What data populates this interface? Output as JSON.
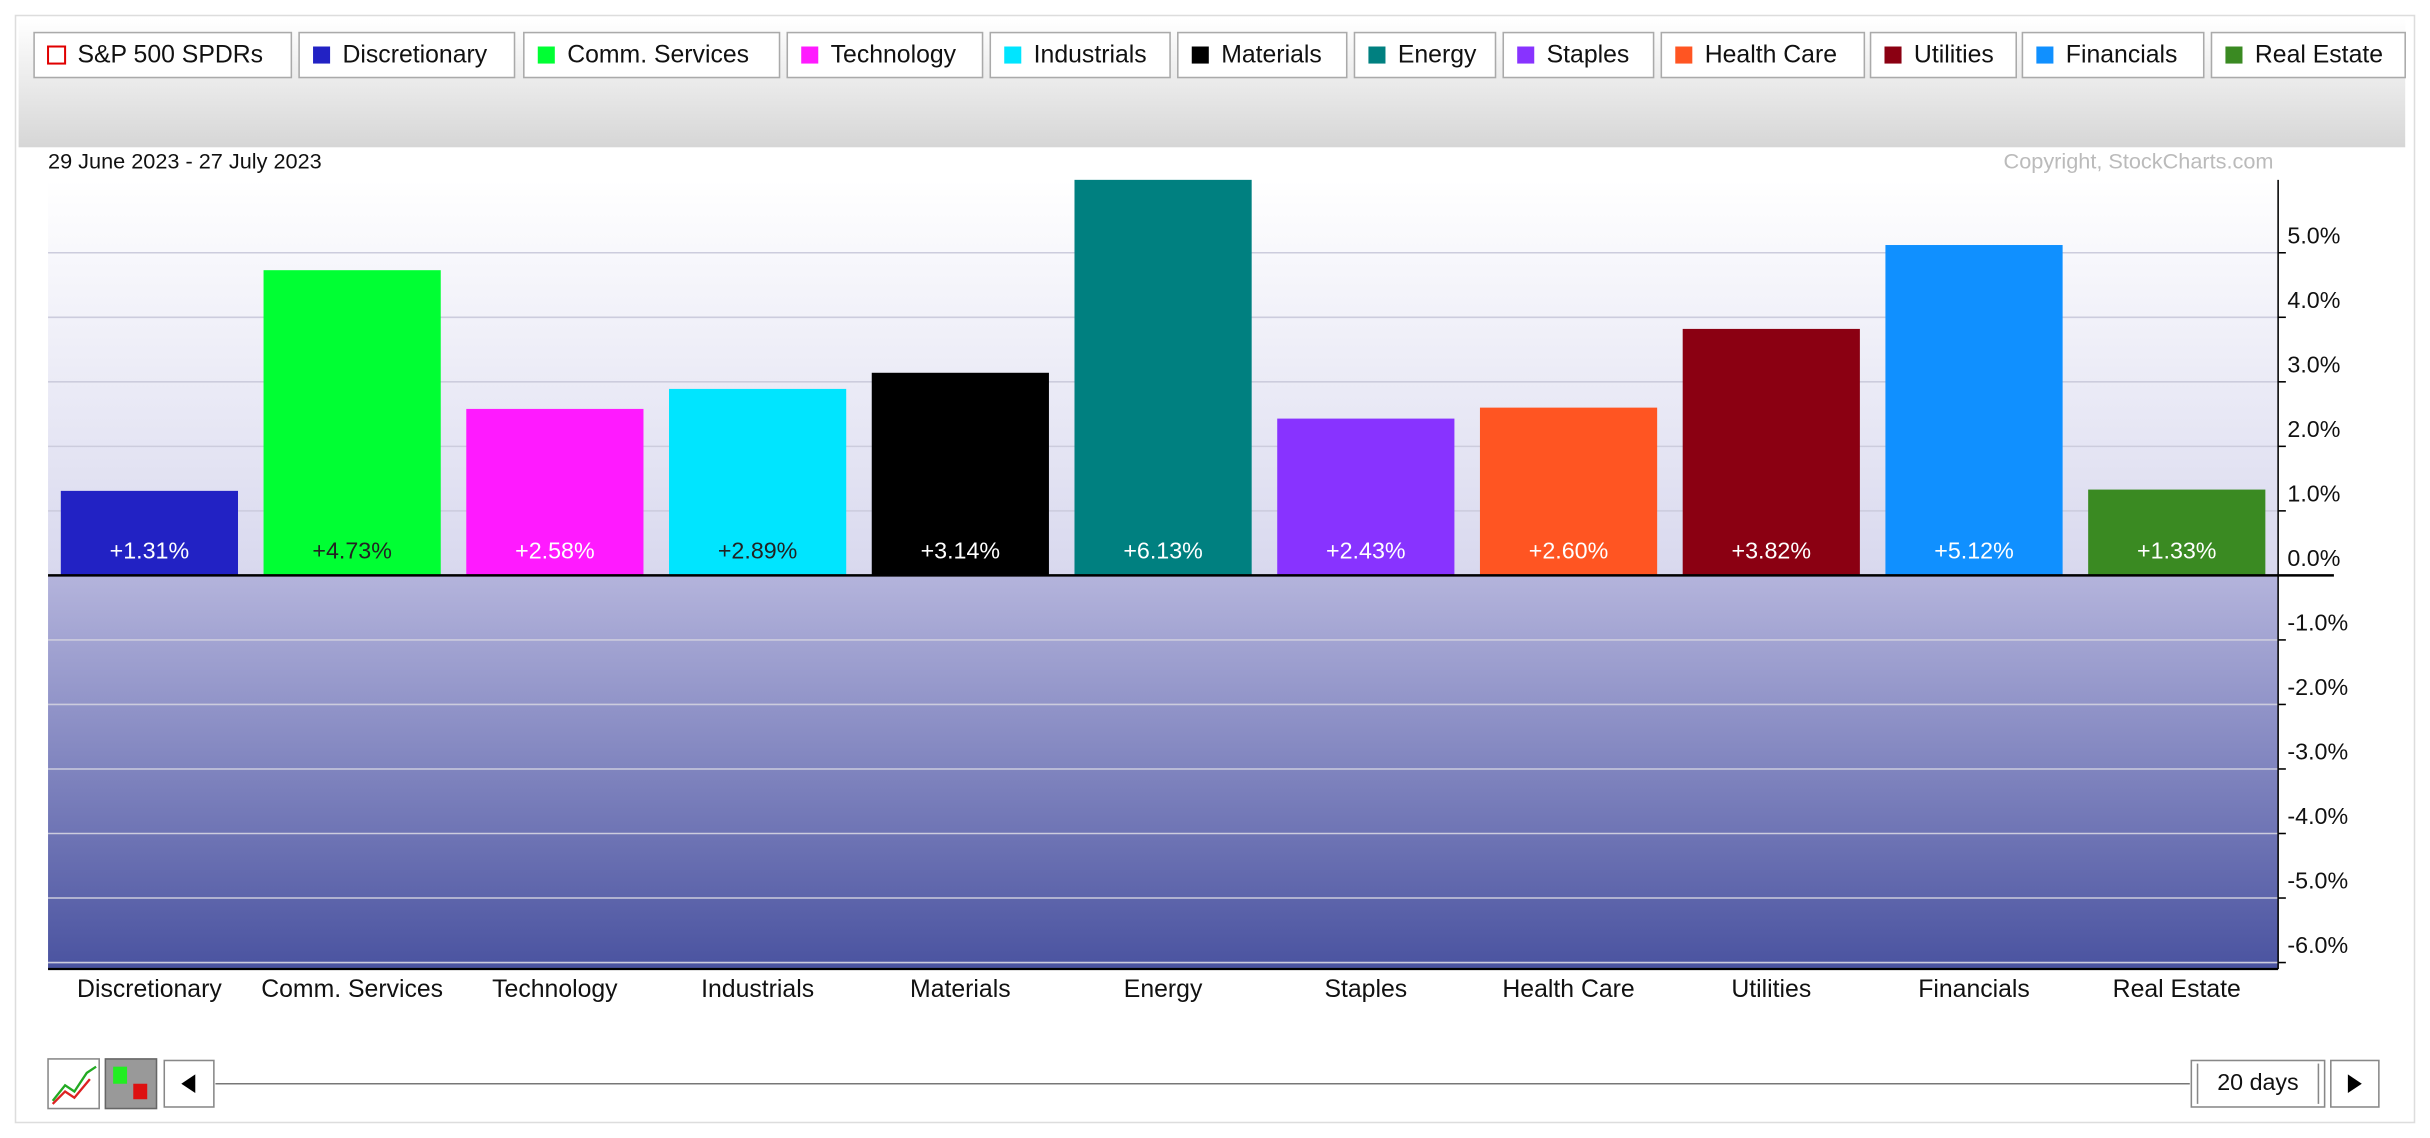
{
  "chart_data": {
    "type": "bar",
    "subtitle": "29 June 2023 - 27 July 2023",
    "copyright": "Copyright, StockCharts.com",
    "benchmark": "S&P 500 SPDRs",
    "period": "20 days",
    "categories": [
      "Discretionary",
      "Comm. Services",
      "Technology",
      "Industrials",
      "Materials",
      "Energy",
      "Staples",
      "Health Care",
      "Utilities",
      "Financials",
      "Real Estate"
    ],
    "values": [
      1.31,
      4.73,
      2.58,
      2.89,
      3.14,
      6.13,
      2.43,
      2.6,
      3.82,
      5.12,
      1.33
    ],
    "value_labels": [
      "+1.31%",
      "+4.73%",
      "+2.58%",
      "+2.89%",
      "+3.14%",
      "+6.13%",
      "+2.43%",
      "+2.60%",
      "+3.82%",
      "+5.12%",
      "+1.33%"
    ],
    "colors": [
      "#2222c4",
      "#00ff33",
      "#ff1aff",
      "#00e5ff",
      "#000000",
      "#008080",
      "#8833ff",
      "#ff5522",
      "#8b0012",
      "#1090ff",
      "#3a8a22"
    ],
    "benchmark_color": "#e00000",
    "ylim": [
      -6.1,
      6.13
    ],
    "yticks": [
      {
        "value": 5,
        "label": "5.0%"
      },
      {
        "value": 4,
        "label": "4.0%"
      },
      {
        "value": 3,
        "label": "3.0%"
      },
      {
        "value": 2,
        "label": "2.0%"
      },
      {
        "value": 1,
        "label": "1.0%"
      },
      {
        "value": 0,
        "label": "0.0%"
      },
      {
        "value": -1,
        "label": "-1.0%"
      },
      {
        "value": -2,
        "label": "-2.0%"
      },
      {
        "value": -3,
        "label": "-3.0%"
      },
      {
        "value": -4,
        "label": "-4.0%"
      },
      {
        "value": -5,
        "label": "-5.0%"
      },
      {
        "value": -6,
        "label": "-6.0%"
      }
    ],
    "grid": true
  }
}
